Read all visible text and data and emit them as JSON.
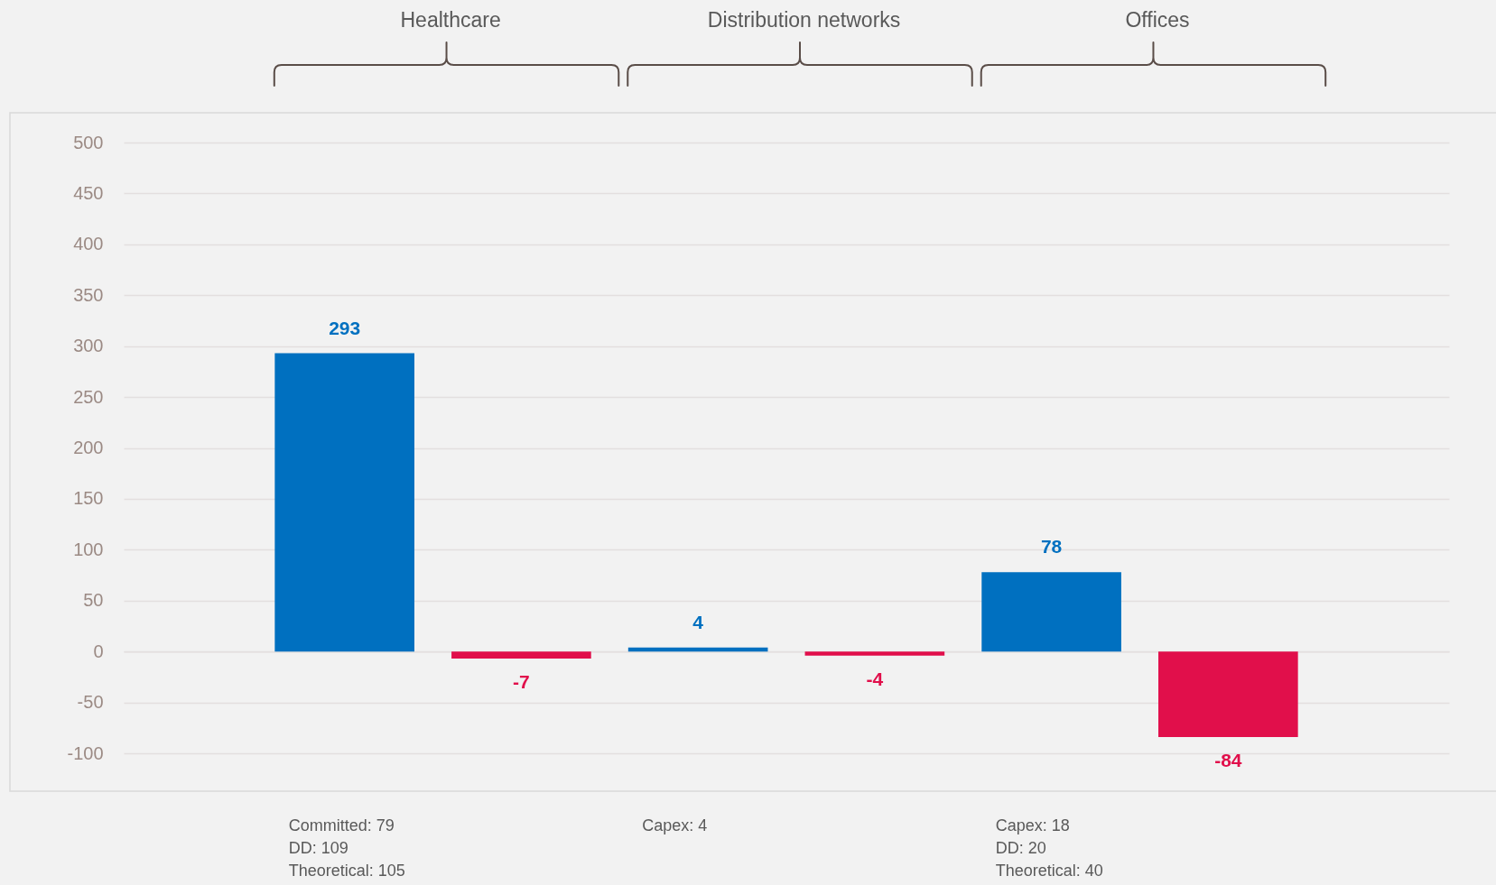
{
  "chart_data": {
    "type": "bar",
    "categories": [
      "Healthcare",
      "Distribution networks",
      "Offices"
    ],
    "series": [
      {
        "color": "#0070c0",
        "values": [
          293,
          4,
          78
        ]
      },
      {
        "color": "#e10f4b",
        "values": [
          -7,
          -4,
          -84
        ]
      }
    ],
    "ylim": [
      -100,
      500
    ],
    "yticks": [
      -100,
      -50,
      0,
      50,
      100,
      150,
      200,
      250,
      300,
      350,
      400,
      450,
      500
    ],
    "grid": "y",
    "data_labels": true,
    "annotations": [
      "Committed: 79\nDD: 109\nTheoretical: 105",
      "Capex: 4",
      "Capex: 18\nDD: 20\nTheoretical: 40"
    ]
  }
}
